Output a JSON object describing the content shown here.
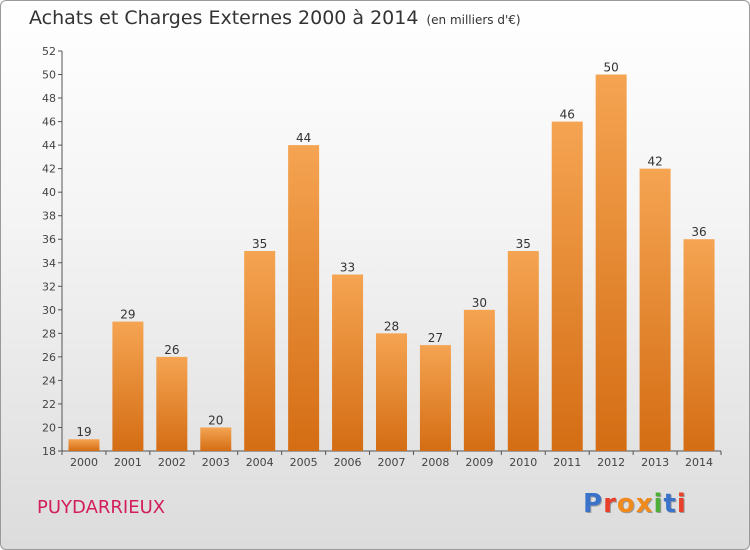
{
  "title": "Achats et Charges Externes 2000 à 2014",
  "subtitle": "(en milliers d'€)",
  "commune": "PUYDARRIEUX",
  "logo": {
    "letters": [
      "P",
      "r",
      "o",
      "x",
      "i",
      "t",
      "i"
    ],
    "colors": [
      "#3a73c9",
      "#e8402a",
      "#f08a1c",
      "#f08a1c",
      "#4fae3a",
      "#3a73c9",
      "#e8402a"
    ]
  },
  "colors": {
    "bar_top": "#f5a452",
    "bar_bottom": "#d46d14",
    "title": "#333333",
    "commune": "#d21e5a"
  },
  "chart_data": {
    "type": "bar",
    "categories": [
      "2000",
      "2001",
      "2002",
      "2003",
      "2004",
      "2005",
      "2006",
      "2007",
      "2008",
      "2009",
      "2010",
      "2011",
      "2012",
      "2013",
      "2014"
    ],
    "values": [
      19,
      29,
      26,
      20,
      35,
      44,
      33,
      28,
      27,
      30,
      35,
      46,
      50,
      42,
      36
    ],
    "data_labels": [
      "19",
      "29",
      "26",
      "20",
      "35",
      "44",
      "33",
      "28",
      "27",
      "30",
      "35",
      "46",
      "50",
      "42",
      "36"
    ],
    "yticks": [
      "18",
      "20",
      "22",
      "24",
      "26",
      "28",
      "30",
      "32",
      "34",
      "36",
      "38",
      "40",
      "42",
      "44",
      "46",
      "48",
      "50",
      "52"
    ],
    "ylim": [
      18,
      52
    ],
    "grid": false,
    "legend": "none"
  }
}
